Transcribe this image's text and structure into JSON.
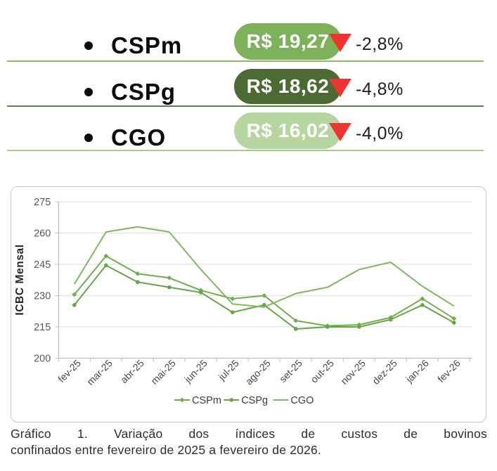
{
  "summary_rows": [
    {
      "label": "CSPm",
      "value": "R$ 19,27",
      "change": "-2,8%",
      "pill_color": "#7db15a",
      "divider_color": "#8abb68"
    },
    {
      "label": "CSPg",
      "value": "R$ 18,62",
      "change": "-4,8%",
      "pill_color": "#4c6a31",
      "divider_color": "#5d8044"
    },
    {
      "label": "CGO",
      "value": "R$ 16,02",
      "change": "-4,0%",
      "pill_color": "#b6d5a0",
      "divider_color": "#a3cb85"
    }
  ],
  "triangle_color": "#ee3430",
  "chart_data": {
    "type": "line",
    "ylabel": "ICBC Mensal",
    "x": [
      "fev-25",
      "mar-25",
      "abr-25",
      "mai-25",
      "jun-25",
      "jul-25",
      "ago-25",
      "set-25",
      "out-25",
      "nov-25",
      "dez-25",
      "jan-26",
      "fev-26"
    ],
    "series": [
      {
        "name": "CSPm",
        "marker": "diamond",
        "color": "#70ae4c",
        "values": [
          230.5,
          249,
          240.5,
          238.5,
          232.5,
          228.5,
          230,
          218,
          215.5,
          216,
          219.5,
          228.5,
          219
        ]
      },
      {
        "name": "CSPg",
        "marker": "circle",
        "color": "#65a545",
        "values": [
          225.5,
          244.5,
          236.5,
          234,
          231.5,
          222,
          225.5,
          214,
          215,
          215,
          218.5,
          225.5,
          217
        ]
      },
      {
        "name": "CGO",
        "marker": "none",
        "color": "#7db95d",
        "values": [
          235.5,
          260.5,
          263,
          260.5,
          242.5,
          226,
          224.5,
          231,
          234,
          242.5,
          246,
          234.5,
          225
        ]
      }
    ],
    "ylim": [
      200,
      275
    ],
    "yticks": [
      200,
      215,
      230,
      245,
      260,
      275
    ],
    "grid": true,
    "legend_position": "bottom"
  },
  "caption": {
    "line1": "Gráfico 1. Variação dos índices de custos de bovinos",
    "line2": "confinados entre fevereiro de 2025 a fevereiro de 2026."
  }
}
